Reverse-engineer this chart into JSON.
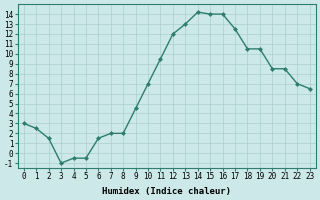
{
  "x": [
    0,
    1,
    2,
    3,
    4,
    5,
    6,
    7,
    8,
    9,
    10,
    11,
    12,
    13,
    14,
    15,
    16,
    17,
    18,
    19,
    20,
    21,
    22,
    23
  ],
  "y": [
    3.0,
    2.5,
    1.5,
    -1.0,
    -0.5,
    -0.5,
    1.5,
    2.0,
    2.0,
    4.5,
    7.0,
    9.5,
    12.0,
    13.0,
    14.2,
    14.0,
    14.0,
    12.5,
    10.5,
    10.5,
    8.5,
    8.5,
    7.0,
    6.5
  ],
  "line_color": "#2e7d6e",
  "marker": "D",
  "marker_size": 2,
  "marker_facecolor": "#2e7d6e",
  "bg_color": "#cce8e8",
  "grid_color": "#aacfcf",
  "xlabel": "Humidex (Indice chaleur)",
  "xlabel_fontsize": 6.5,
  "yticks": [
    -1,
    0,
    1,
    2,
    3,
    4,
    5,
    6,
    7,
    8,
    9,
    10,
    11,
    12,
    13,
    14
  ],
  "xticks": [
    0,
    1,
    2,
    3,
    4,
    5,
    6,
    7,
    8,
    9,
    10,
    11,
    12,
    13,
    14,
    15,
    16,
    17,
    18,
    19,
    20,
    21,
    22,
    23
  ],
  "ylim": [
    -1.5,
    15.0
  ],
  "xlim": [
    -0.5,
    23.5
  ],
  "tick_fontsize": 5.5,
  "linewidth": 1.0
}
